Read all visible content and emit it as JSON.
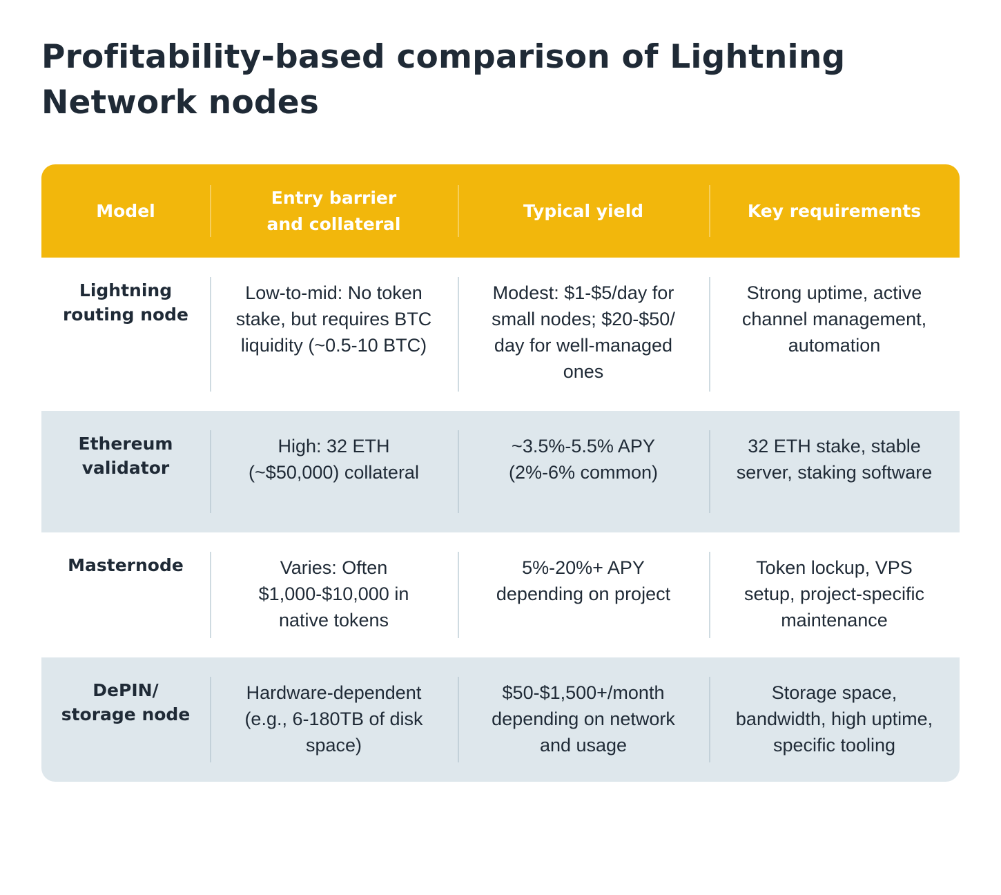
{
  "title": "Profitability-based comparison of Lightning Network nodes",
  "colors": {
    "header_background": "#f2b70c",
    "header_text": "#ffffff",
    "alt_row_background": "#dee7ec",
    "text": "#1f2a36"
  },
  "table": {
    "headers": [
      "Model",
      "Entry barrier and collateral",
      "Typical yield",
      "Key requirements"
    ],
    "rows": [
      {
        "model": "Lightning routing node",
        "entry": "Low-to-mid: No token stake, but requires BTC liquidity (~0.5-10 BTC)",
        "yield": "Modest: $1-$5/day for small nodes; $20-$50/ day for well-managed ones",
        "requirements": "Strong uptime, active channel management, automation"
      },
      {
        "model": "Ethereum validator",
        "entry": "High: 32 ETH (~$50,000) collateral",
        "yield": "~3.5%-5.5% APY (2%-6% common)",
        "requirements": "32 ETH stake, stable server, staking software"
      },
      {
        "model": "Masternode",
        "entry": "Varies: Often $1,000-$10,000 in native tokens",
        "yield": "5%-20%+ APY depending on project",
        "requirements": "Token lockup, VPS setup, project-specific maintenance"
      },
      {
        "model": "DePIN/ storage node",
        "entry": "Hardware-dependent (e.g., 6-180TB of disk space)",
        "yield": "$50-$1,500+/month depending on network and usage",
        "requirements": "Storage space, bandwidth, high uptime, specific tooling"
      }
    ]
  }
}
